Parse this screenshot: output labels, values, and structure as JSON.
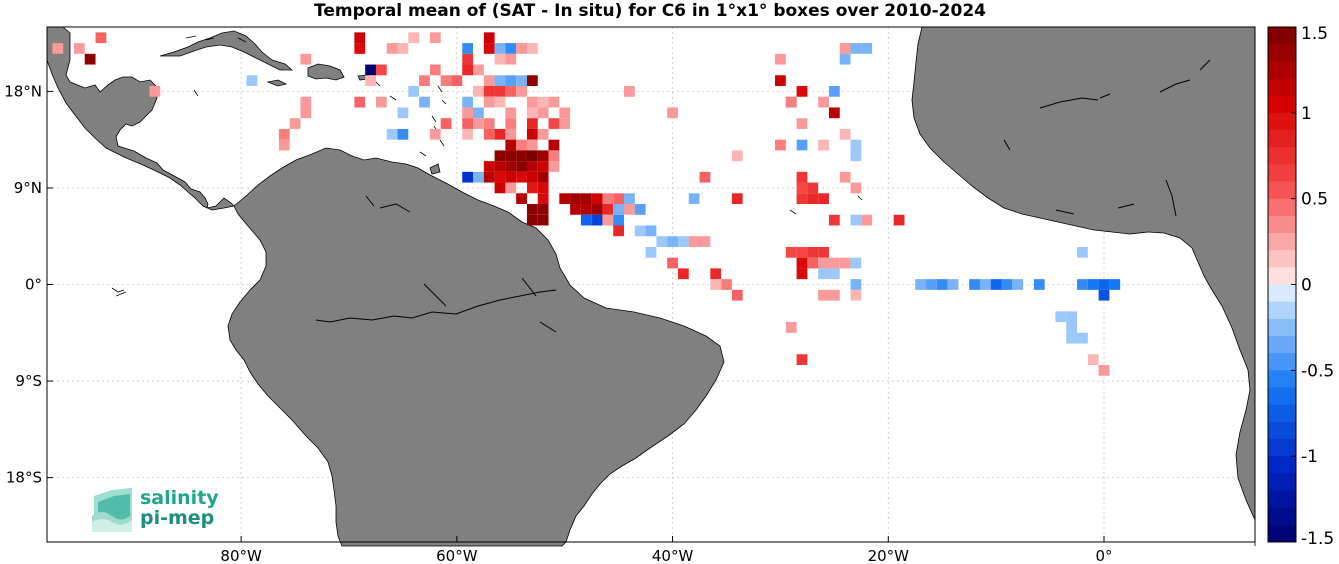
{
  "title": "Temporal mean of (SAT - In situ) for C6 in 1°x1° boxes over 2010-2024",
  "x_ticks": [
    {
      "label": "80°W",
      "deg": -80
    },
    {
      "label": "60°W",
      "deg": -60
    },
    {
      "label": "40°W",
      "deg": -40
    },
    {
      "label": "20°W",
      "deg": -20
    },
    {
      "label": "0°",
      "deg": 0
    }
  ],
  "y_ticks": [
    {
      "label": "18°N",
      "deg": 18
    },
    {
      "label": "9°N",
      "deg": 9
    },
    {
      "label": "0°",
      "deg": 0
    },
    {
      "label": "9°S",
      "deg": -9
    },
    {
      "label": "18°S",
      "deg": -18
    }
  ],
  "colorbar": {
    "min": -1.5,
    "max": 1.5,
    "ticks": [
      {
        "label": "1.5",
        "value": 1.5
      },
      {
        "label": "1",
        "value": 1
      },
      {
        "label": "0.5",
        "value": 0.5
      },
      {
        "label": "0",
        "value": 0
      },
      {
        "label": "-0.5",
        "value": -0.5
      },
      {
        "label": "-1",
        "value": -1
      },
      {
        "label": "-1.5",
        "value": -1.5
      }
    ]
  },
  "logo": {
    "line1": "salinity",
    "line2": "pi-mep"
  },
  "colors": {
    "land": "#808080",
    "grid": "#c8c8c8"
  },
  "map_data": {
    "extent": {
      "lon": [
        -98,
        14
      ],
      "lat": [
        -24,
        24
      ]
    },
    "cells": [
      [
        -94,
        21,
        1.4
      ],
      [
        -95,
        22,
        0.3
      ],
      [
        -97,
        22,
        0.3
      ],
      [
        -93,
        23,
        0.5
      ],
      [
        -88,
        18,
        0.3
      ],
      [
        -79,
        19,
        -0.2
      ],
      [
        -74,
        21,
        0.3
      ],
      [
        -69,
        23,
        1.1
      ],
      [
        -69,
        22,
        1.0
      ],
      [
        -68,
        20,
        -1.5
      ],
      [
        -67,
        20,
        0.6
      ],
      [
        -68,
        19,
        0.2
      ],
      [
        -66,
        22,
        0.3
      ],
      [
        -65,
        22,
        0.2
      ],
      [
        -64,
        23,
        0.2
      ],
      [
        -62,
        23,
        0.3
      ],
      [
        -63,
        19,
        0.4
      ],
      [
        -62,
        20,
        0.4
      ],
      [
        -60,
        19,
        0.5
      ],
      [
        -61,
        19,
        0.4
      ],
      [
        -64,
        18,
        -0.2
      ],
      [
        -63,
        17,
        -0.3
      ],
      [
        -65,
        16,
        -0.2
      ],
      [
        -67,
        17,
        0.3
      ],
      [
        -69,
        17,
        0.5
      ],
      [
        -74,
        17,
        0.3
      ],
      [
        -76,
        14,
        0.4
      ],
      [
        -76,
        13,
        0.3
      ],
      [
        -75,
        15,
        0.3
      ],
      [
        -74,
        16,
        0.3
      ],
      [
        -65,
        14,
        -0.5
      ],
      [
        -66,
        14,
        -0.2
      ],
      [
        -62,
        14,
        0.3
      ],
      [
        -61,
        15,
        0.5
      ],
      [
        -59,
        22,
        -0.5
      ],
      [
        -57,
        23,
        1.1
      ],
      [
        -57,
        22,
        1.0
      ],
      [
        -56,
        22,
        -0.3
      ],
      [
        -55,
        22,
        -0.5
      ],
      [
        -54,
        22,
        0.3
      ],
      [
        -53,
        22,
        0.2
      ],
      [
        -56,
        21,
        0.2
      ],
      [
        -55,
        21,
        0.3
      ],
      [
        -59,
        21,
        0.7
      ],
      [
        -59,
        20,
        0.8
      ],
      [
        -58,
        20,
        0.3
      ],
      [
        -57,
        19,
        0.3
      ],
      [
        -56,
        19,
        -0.3
      ],
      [
        -55,
        19,
        -0.4
      ],
      [
        -54,
        19,
        -0.3
      ],
      [
        -53,
        19,
        1.4
      ],
      [
        -58,
        18,
        0.2
      ],
      [
        -57,
        18,
        0.7
      ],
      [
        -56,
        18,
        0.7
      ],
      [
        -55,
        18,
        0.5
      ],
      [
        -54,
        18,
        0.3
      ],
      [
        -59,
        17,
        -0.3
      ],
      [
        -57,
        17,
        0.3
      ],
      [
        -56,
        17,
        0.2
      ],
      [
        -53,
        17,
        0.3
      ],
      [
        -52,
        17,
        0.2
      ],
      [
        -51,
        17,
        0.3
      ],
      [
        -59,
        16,
        0.3
      ],
      [
        -58,
        16,
        -0.3
      ],
      [
        -55,
        16,
        0.3
      ],
      [
        -53,
        16,
        0.2
      ],
      [
        -52,
        16,
        0.3
      ],
      [
        -50,
        16,
        0.3
      ],
      [
        -59,
        15,
        0.5
      ],
      [
        -58,
        15,
        0.3
      ],
      [
        -57,
        15,
        0.4
      ],
      [
        -55,
        15,
        0.4
      ],
      [
        -53,
        15,
        0.8
      ],
      [
        -51,
        15,
        0.6
      ],
      [
        -50,
        15,
        0.3
      ],
      [
        -59,
        14,
        0.2
      ],
      [
        -57,
        14,
        0.5
      ],
      [
        -56,
        14,
        0.8
      ],
      [
        -55,
        14,
        0.3
      ],
      [
        -53,
        14,
        1.1
      ],
      [
        -52,
        14,
        0.3
      ],
      [
        -55,
        13,
        1.2
      ],
      [
        -54,
        13,
        0.4
      ],
      [
        -53,
        13,
        0.3
      ],
      [
        -51,
        13,
        1.2
      ],
      [
        -56,
        12,
        1.4
      ],
      [
        -55,
        12,
        1.4
      ],
      [
        -54,
        12,
        1.4
      ],
      [
        -53,
        12,
        1.5
      ],
      [
        -52,
        12,
        1.3
      ],
      [
        -51,
        12,
        0.4
      ],
      [
        -57,
        11,
        1.1
      ],
      [
        -56,
        11,
        1.2
      ],
      [
        -55,
        11,
        1.3
      ],
      [
        -54,
        11,
        1.4
      ],
      [
        -53,
        11,
        1.2
      ],
      [
        -52,
        11,
        1.1
      ],
      [
        -51,
        11,
        0.3
      ],
      [
        -59,
        10,
        -1.0
      ],
      [
        -58,
        10,
        -0.3
      ],
      [
        -57,
        10,
        1.2
      ],
      [
        -56,
        10,
        1.0
      ],
      [
        -55,
        10,
        1.1
      ],
      [
        -54,
        10,
        1.0
      ],
      [
        -53,
        10,
        1.1
      ],
      [
        -52,
        10,
        1.3
      ],
      [
        -56,
        9,
        1.1
      ],
      [
        -55,
        9,
        0.3
      ],
      [
        -53,
        9,
        0.9
      ],
      [
        -52,
        9,
        1.0
      ],
      [
        -54,
        8,
        1.2
      ],
      [
        -52,
        8,
        1.0
      ],
      [
        -52,
        7,
        1.4
      ],
      [
        -53,
        7,
        1.4
      ],
      [
        -52,
        6,
        1.4
      ],
      [
        -53,
        6,
        1.4
      ],
      [
        -50,
        8,
        1.2
      ],
      [
        -49,
        8,
        1.3
      ],
      [
        -48,
        8,
        1.3
      ],
      [
        -47,
        8,
        1.1
      ],
      [
        -46,
        8,
        0.4
      ],
      [
        -45,
        8,
        0.5
      ],
      [
        -44,
        8,
        -0.3
      ],
      [
        -49,
        7,
        1.2
      ],
      [
        -48,
        7,
        1.2
      ],
      [
        -47,
        7,
        1.3
      ],
      [
        -46,
        7,
        0.8
      ],
      [
        -45,
        7,
        -0.3
      ],
      [
        -44,
        7,
        0.3
      ],
      [
        -43,
        7,
        -0.4
      ],
      [
        -48,
        6,
        -0.7
      ],
      [
        -47,
        6,
        -0.9
      ],
      [
        -46,
        6,
        0.3
      ],
      [
        -45,
        6,
        -0.5
      ],
      [
        -45,
        5,
        0.8
      ],
      [
        -43,
        5,
        -0.2
      ],
      [
        -42,
        5,
        -0.3
      ],
      [
        -41,
        4,
        -0.2
      ],
      [
        -40,
        4,
        -0.3
      ],
      [
        -39,
        4,
        -0.2
      ],
      [
        -38,
        4,
        0.3
      ],
      [
        -37,
        4,
        0.3
      ],
      [
        -42,
        3,
        -0.2
      ],
      [
        -40,
        2,
        0.5
      ],
      [
        -39,
        1,
        0.8
      ],
      [
        -36,
        1,
        0.8
      ],
      [
        -35,
        0,
        0.4
      ],
      [
        -36,
        0,
        0.2
      ],
      [
        -34,
        -1,
        0.5
      ],
      [
        -40,
        16,
        0.3
      ],
      [
        -44,
        18,
        0.3
      ],
      [
        -34,
        12,
        0.2
      ],
      [
        -37,
        10,
        0.5
      ],
      [
        -38,
        8,
        -0.3
      ],
      [
        -34,
        8,
        0.8
      ],
      [
        -30,
        19,
        1.1
      ],
      [
        -29,
        17,
        0.5
      ],
      [
        -28,
        18,
        1.0
      ],
      [
        -30,
        13,
        0.4
      ],
      [
        -28,
        13,
        -0.4
      ],
      [
        -26,
        13,
        0.2
      ],
      [
        -28,
        9,
        0.6
      ],
      [
        -28,
        10,
        0.7
      ],
      [
        -27,
        9,
        0.7
      ],
      [
        -27,
        8,
        0.8
      ],
      [
        -26,
        8,
        0.8
      ],
      [
        -28,
        8,
        0.7
      ],
      [
        -30,
        21,
        0.3
      ],
      [
        -29,
        17,
        0.4
      ],
      [
        -28,
        15,
        0.3
      ],
      [
        -26,
        17,
        0.3
      ],
      [
        -25,
        16,
        1.2
      ],
      [
        -25,
        18,
        -0.4
      ],
      [
        -24,
        22,
        0.3
      ],
      [
        -23,
        22,
        -0.3
      ],
      [
        -22,
        22,
        -0.3
      ],
      [
        -24,
        21,
        -0.3
      ],
      [
        -24,
        14,
        0.2
      ],
      [
        -23,
        13,
        -0.2
      ],
      [
        -23,
        12,
        -0.2
      ],
      [
        -24,
        10,
        0.3
      ],
      [
        -23,
        9,
        0.3
      ],
      [
        -25,
        6,
        0.7
      ],
      [
        -23,
        6,
        -0.2
      ],
      [
        -22,
        6,
        0.3
      ],
      [
        -19,
        6,
        0.8
      ],
      [
        -28,
        3,
        0.6
      ],
      [
        -29,
        3,
        0.6
      ],
      [
        -27,
        3,
        0.7
      ],
      [
        -26,
        3,
        0.7
      ],
      [
        -28,
        2,
        1.0
      ],
      [
        -28,
        1,
        1.0
      ],
      [
        -27,
        2,
        0.5
      ],
      [
        -26,
        2,
        0.3
      ],
      [
        -25,
        2,
        0.3
      ],
      [
        -24,
        2,
        0.3
      ],
      [
        -23,
        2,
        -0.2
      ],
      [
        -26,
        1,
        -0.2
      ],
      [
        -25,
        1,
        -0.2
      ],
      [
        -23,
        0,
        -0.3
      ],
      [
        -26,
        -1,
        0.3
      ],
      [
        -25,
        -1,
        0.3
      ],
      [
        -23,
        -1,
        0.2
      ],
      [
        -29,
        -4,
        0.3
      ],
      [
        -28,
        -7,
        0.7
      ],
      [
        -17,
        0,
        -0.3
      ],
      [
        -16,
        0,
        -0.4
      ],
      [
        -15,
        0,
        -0.5
      ],
      [
        -14,
        0,
        -0.3
      ],
      [
        -12,
        0,
        -0.5
      ],
      [
        -11,
        0,
        -0.3
      ],
      [
        -10,
        0,
        -0.7
      ],
      [
        -9,
        0,
        -0.5
      ],
      [
        -8,
        0,
        -0.3
      ],
      [
        -6,
        0,
        -0.5
      ],
      [
        -2,
        0,
        -0.5
      ],
      [
        -1,
        0,
        -0.6
      ],
      [
        0,
        0,
        -0.7
      ],
      [
        1,
        0,
        -0.6
      ],
      [
        0,
        -1,
        -0.8
      ],
      [
        -2,
        3,
        -0.2
      ],
      [
        -4,
        -3,
        -0.2
      ],
      [
        -3,
        -3,
        -0.2
      ],
      [
        -3,
        -4,
        -0.2
      ],
      [
        -3,
        -5,
        -0.2
      ],
      [
        -2,
        -5,
        -0.2
      ],
      [
        -1,
        -7,
        0.2
      ],
      [
        0,
        -8,
        0.3
      ]
    ]
  }
}
